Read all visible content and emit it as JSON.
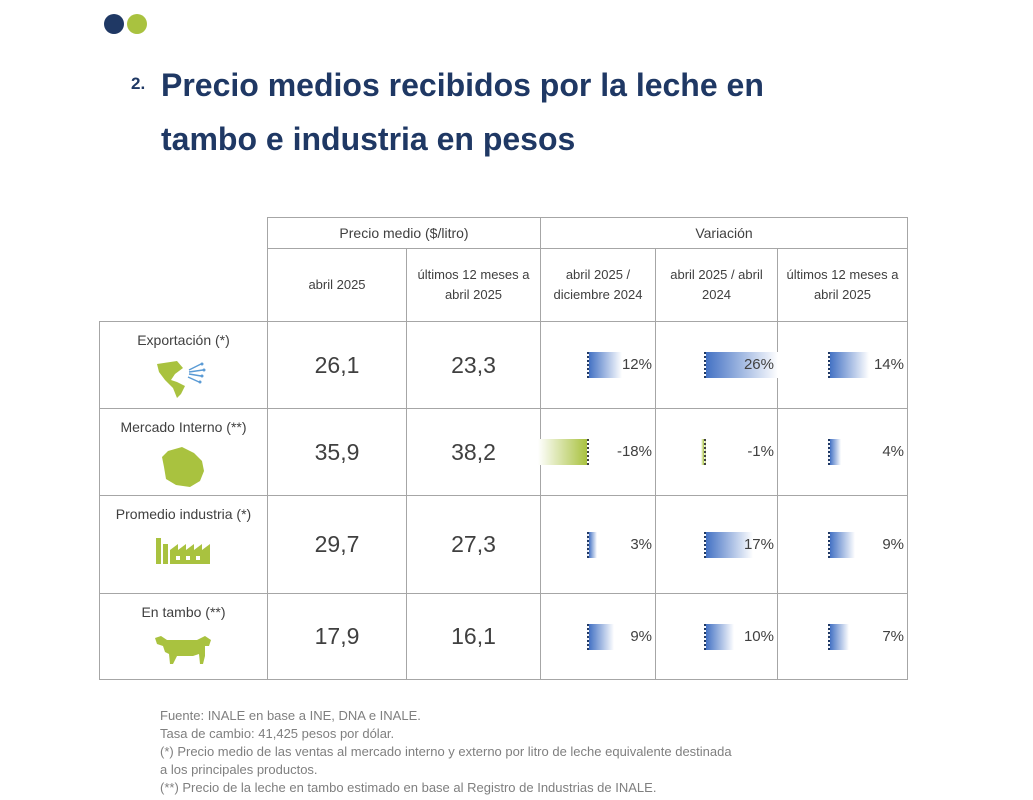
{
  "header": {
    "section_number": "2.",
    "title": "Precio medios recibidos por la leche en tambo e industria en pesos"
  },
  "table": {
    "group_headers": [
      "Precio medio ($/litro)",
      "Variación"
    ],
    "columns": [
      "abril 2025",
      "últimos 12 meses a abril 2025",
      "abril 2025 / diciembre 2024",
      "abril 2025 / abril 2024",
      "últimos 12 meses a abril 2025"
    ],
    "rows": [
      {
        "label": "Exportación (*)",
        "icon": "americas-map-icon",
        "price_abril_2025": "26,1",
        "price_12m": "23,3",
        "var_dic": "12%",
        "var_abr": "26%",
        "var_12m": "14%"
      },
      {
        "label": "Mercado Interno (**)",
        "icon": "uruguay-map-icon",
        "price_abril_2025": "35,9",
        "price_12m": "38,2",
        "var_dic": "-18%",
        "var_abr": "-1%",
        "var_12m": "4%"
      },
      {
        "label": "Promedio industria (*)",
        "icon": "factory-icon",
        "price_abril_2025": "29,7",
        "price_12m": "27,3",
        "var_dic": "3%",
        "var_abr": "17%",
        "var_12m": "9%"
      },
      {
        "label": "En tambo (**)",
        "icon": "cow-icon",
        "price_abril_2025": "17,9",
        "price_12m": "16,1",
        "var_dic": "9%",
        "var_abr": "10%",
        "var_12m": "7%"
      }
    ],
    "variation_bars": [
      [
        12,
        26,
        14
      ],
      [
        -18,
        -1,
        4
      ],
      [
        3,
        17,
        9
      ],
      [
        9,
        10,
        7
      ]
    ],
    "colors": {
      "positive_bar": "#4472c4",
      "negative_bar": "#a9c23f",
      "price_text": "#2e74b5",
      "title": "#1f3864"
    }
  },
  "footer": [
    "Fuente: INALE en base a INE, DNA e INALE.",
    "Tasa de cambio: 41,425 pesos por dólar.",
    "(*) Precio medio de las ventas al mercado interno y externo por litro de leche equivalente destinada",
    "a los principales productos.",
    "(**) Precio de la leche en tambo estimado en base al Registro de Industrias de INALE."
  ]
}
